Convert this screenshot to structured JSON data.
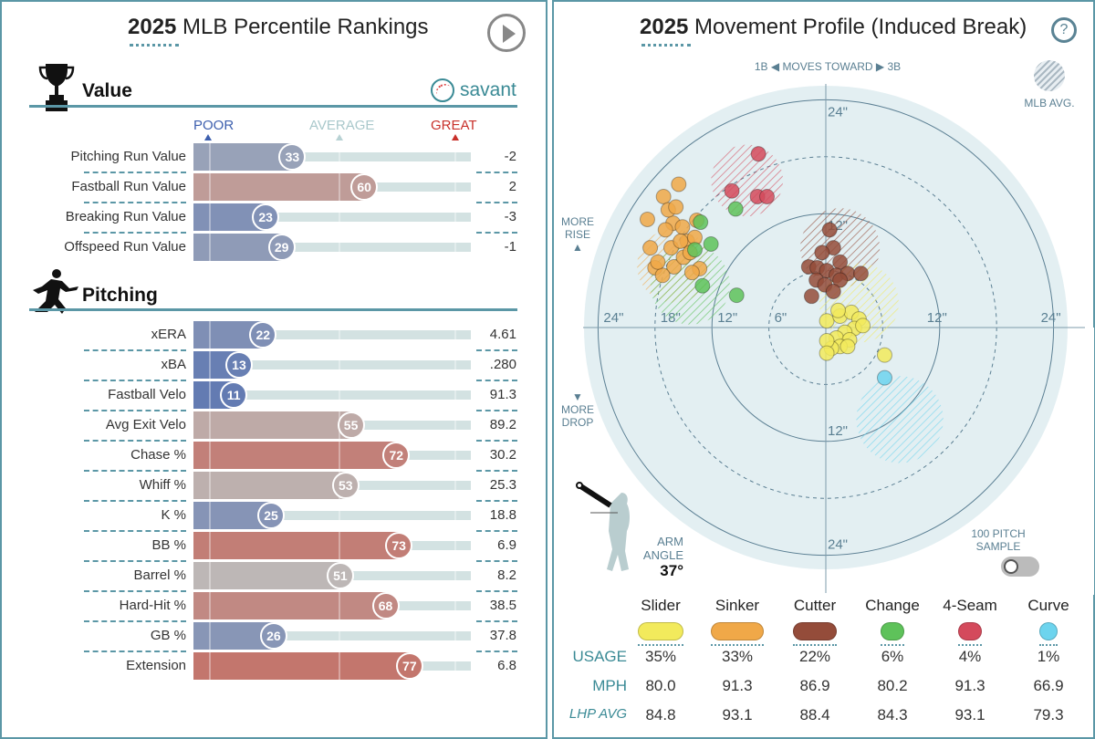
{
  "left": {
    "title_year": "2025",
    "title_rest": " MLB Percentile Rankings",
    "value_header": "Value",
    "savant_logo": "savant",
    "pitching_header": "Pitching",
    "scale": {
      "poor": "POOR",
      "average": "AVERAGE",
      "great": "GREAT"
    },
    "colors": {
      "poor": "#3d5fae",
      "average": "#bcbcbc",
      "great": "#c8493a"
    },
    "value_rows": [
      {
        "label": "Pitching Run Value",
        "percentile": 33,
        "value": "-2"
      },
      {
        "label": "Fastball Run Value",
        "percentile": 60,
        "value": "2"
      },
      {
        "label": "Breaking Run Value",
        "percentile": 23,
        "value": "-3"
      },
      {
        "label": "Offspeed Run Value",
        "percentile": 29,
        "value": "-1"
      }
    ],
    "pitching_rows": [
      {
        "label": "xERA",
        "percentile": 22,
        "value": "4.61"
      },
      {
        "label": "xBA",
        "percentile": 13,
        "value": ".280"
      },
      {
        "label": "Fastball Velo",
        "percentile": 11,
        "value": "91.3"
      },
      {
        "label": "Avg Exit Velo",
        "percentile": 55,
        "value": "89.2"
      },
      {
        "label": "Chase %",
        "percentile": 72,
        "value": "30.2"
      },
      {
        "label": "Whiff %",
        "percentile": 53,
        "value": "25.3"
      },
      {
        "label": "K %",
        "percentile": 25,
        "value": "18.8"
      },
      {
        "label": "BB %",
        "percentile": 73,
        "value": "6.9"
      },
      {
        "label": "Barrel %",
        "percentile": 51,
        "value": "8.2"
      },
      {
        "label": "Hard-Hit %",
        "percentile": 68,
        "value": "38.5"
      },
      {
        "label": "GB %",
        "percentile": 26,
        "value": "37.8"
      },
      {
        "label": "Extension",
        "percentile": 77,
        "value": "6.8"
      }
    ]
  },
  "right": {
    "title_year": "2025",
    "title_rest": " Movement Profile (Induced Break)",
    "help_icon": "?",
    "direction": {
      "left": "1B",
      "middle": "MOVES TOWARD",
      "right": "3B"
    },
    "mlb_avg": "MLB AVG.",
    "more_rise": [
      "MORE",
      "RISE"
    ],
    "more_drop": [
      "MORE",
      "DROP"
    ],
    "arm_angle_label": [
      "ARM",
      "ANGLE"
    ],
    "arm_angle": "37°",
    "sample_label": [
      "100 PITCH",
      "SAMPLE"
    ],
    "sample_toggle_on": false,
    "table_labels": {
      "usage": "USAGE",
      "mph": "MPH",
      "lhp": "LHP AVG"
    },
    "pitches": [
      {
        "name": "Slider",
        "color": "#f2ea5c",
        "usage": "35%",
        "mph": "80.0",
        "lhp": "84.8"
      },
      {
        "name": "Sinker",
        "color": "#f0a848",
        "usage": "33%",
        "mph": "91.3",
        "lhp": "93.1"
      },
      {
        "name": "Cutter",
        "color": "#944c3a",
        "usage": "22%",
        "mph": "86.9",
        "lhp": "88.4"
      },
      {
        "name": "Change",
        "color": "#5ec25a",
        "usage": "6%",
        "mph": "80.2",
        "lhp": "84.3"
      },
      {
        "name": "4-Seam",
        "color": "#d44a5c",
        "usage": "4%",
        "mph": "91.3",
        "lhp": "93.1"
      },
      {
        "name": "Curve",
        "color": "#6dd4ee",
        "usage": "1%",
        "mph": "66.9",
        "lhp": "79.3"
      }
    ]
  },
  "chart_data": {
    "type": "scatter",
    "title": "2025 Movement Profile (Induced Break)",
    "units": "inches",
    "rings": [
      6,
      12,
      18,
      24
    ],
    "ring_labels": {
      "h_left": [
        "24\"",
        "18\"",
        "12\"",
        "6\""
      ],
      "h_right": [
        "12\"",
        "24\""
      ],
      "v_top": [
        "24\"",
        "12\""
      ],
      "v_bottom": [
        "12\"",
        "24\""
      ]
    },
    "xlim": [
      -25,
      25
    ],
    "ylim": [
      -25,
      25
    ],
    "series": [
      {
        "pitch": "Sinker",
        "points": [
          [
            -17.1,
            13.8
          ],
          [
            -15.5,
            15.1
          ],
          [
            -18.8,
            11.4
          ],
          [
            -16.1,
            11.0
          ],
          [
            -16.9,
            10.3
          ],
          [
            -15.1,
            10.6
          ],
          [
            -14.6,
            9.1
          ],
          [
            -18.5,
            8.4
          ],
          [
            -16.3,
            8.4
          ],
          [
            -15.3,
            9.1
          ],
          [
            -13.8,
            9.5
          ],
          [
            -18.0,
            6.3
          ],
          [
            -16.0,
            6.4
          ],
          [
            -17.2,
            5.5
          ],
          [
            -13.3,
            6.2
          ],
          [
            -14.1,
            5.8
          ],
          [
            -15.0,
            7.4
          ],
          [
            -13.6,
            11.3
          ],
          [
            -16.6,
            12.4
          ],
          [
            -15.8,
            12.7
          ],
          [
            -14.3,
            7.9
          ],
          [
            -17.7,
            6.9
          ]
        ],
        "mlb_avg": [
          -16.0,
          6.5,
          3.5
        ]
      },
      {
        "pitch": "4-Seam",
        "points": [
          [
            -7.1,
            18.3
          ],
          [
            -9.9,
            14.4
          ],
          [
            -7.2,
            13.8
          ],
          [
            -6.2,
            13.8
          ]
        ],
        "mlb_avg": [
          -8.3,
          15.5,
          3.4
        ]
      },
      {
        "pitch": "Change",
        "points": [
          [
            -13.2,
            11.1
          ],
          [
            -9.5,
            12.5
          ],
          [
            -13.8,
            8.2
          ],
          [
            -12.1,
            8.8
          ],
          [
            -13.0,
            4.4
          ],
          [
            -9.4,
            3.4
          ]
        ],
        "mlb_avg": [
          -14.3,
          4.5,
          3.8
        ]
      },
      {
        "pitch": "Cutter",
        "points": [
          [
            0.4,
            10.3
          ],
          [
            0.8,
            8.4
          ],
          [
            -0.4,
            7.9
          ],
          [
            1.5,
            6.9
          ],
          [
            -1.8,
            6.4
          ],
          [
            -0.9,
            6.3
          ],
          [
            0.1,
            6.0
          ],
          [
            1.1,
            5.5
          ],
          [
            2.3,
            5.7
          ],
          [
            -1.0,
            5.0
          ],
          [
            -0.1,
            4.5
          ],
          [
            1.5,
            5.0
          ],
          [
            -1.5,
            3.3
          ],
          [
            0.8,
            3.8
          ],
          [
            3.7,
            5.7
          ]
        ],
        "mlb_avg": [
          1.5,
          8.4,
          3.8
        ]
      },
      {
        "pitch": "Slider",
        "points": [
          [
            0.1,
            0.7
          ],
          [
            1.5,
            1.2
          ],
          [
            2.7,
            1.6
          ],
          [
            3.5,
            0.9
          ],
          [
            3.0,
            -0.1
          ],
          [
            2.0,
            -0.5
          ],
          [
            1.1,
            -1.1
          ],
          [
            2.5,
            -1.3
          ],
          [
            1.5,
            -2.0
          ],
          [
            0.6,
            -2.2
          ],
          [
            0.1,
            -1.4
          ],
          [
            3.9,
            0.2
          ],
          [
            1.3,
            1.8
          ],
          [
            2.3,
            -2.0
          ],
          [
            0.1,
            -2.7
          ],
          [
            6.2,
            -2.9
          ]
        ],
        "mlb_avg": [
          3.5,
          2.6,
          3.8
        ]
      },
      {
        "pitch": "Curve",
        "points": [
          [
            6.2,
            -5.3
          ]
        ],
        "mlb_avg": [
          7.8,
          -9.7,
          4.2
        ]
      }
    ]
  }
}
